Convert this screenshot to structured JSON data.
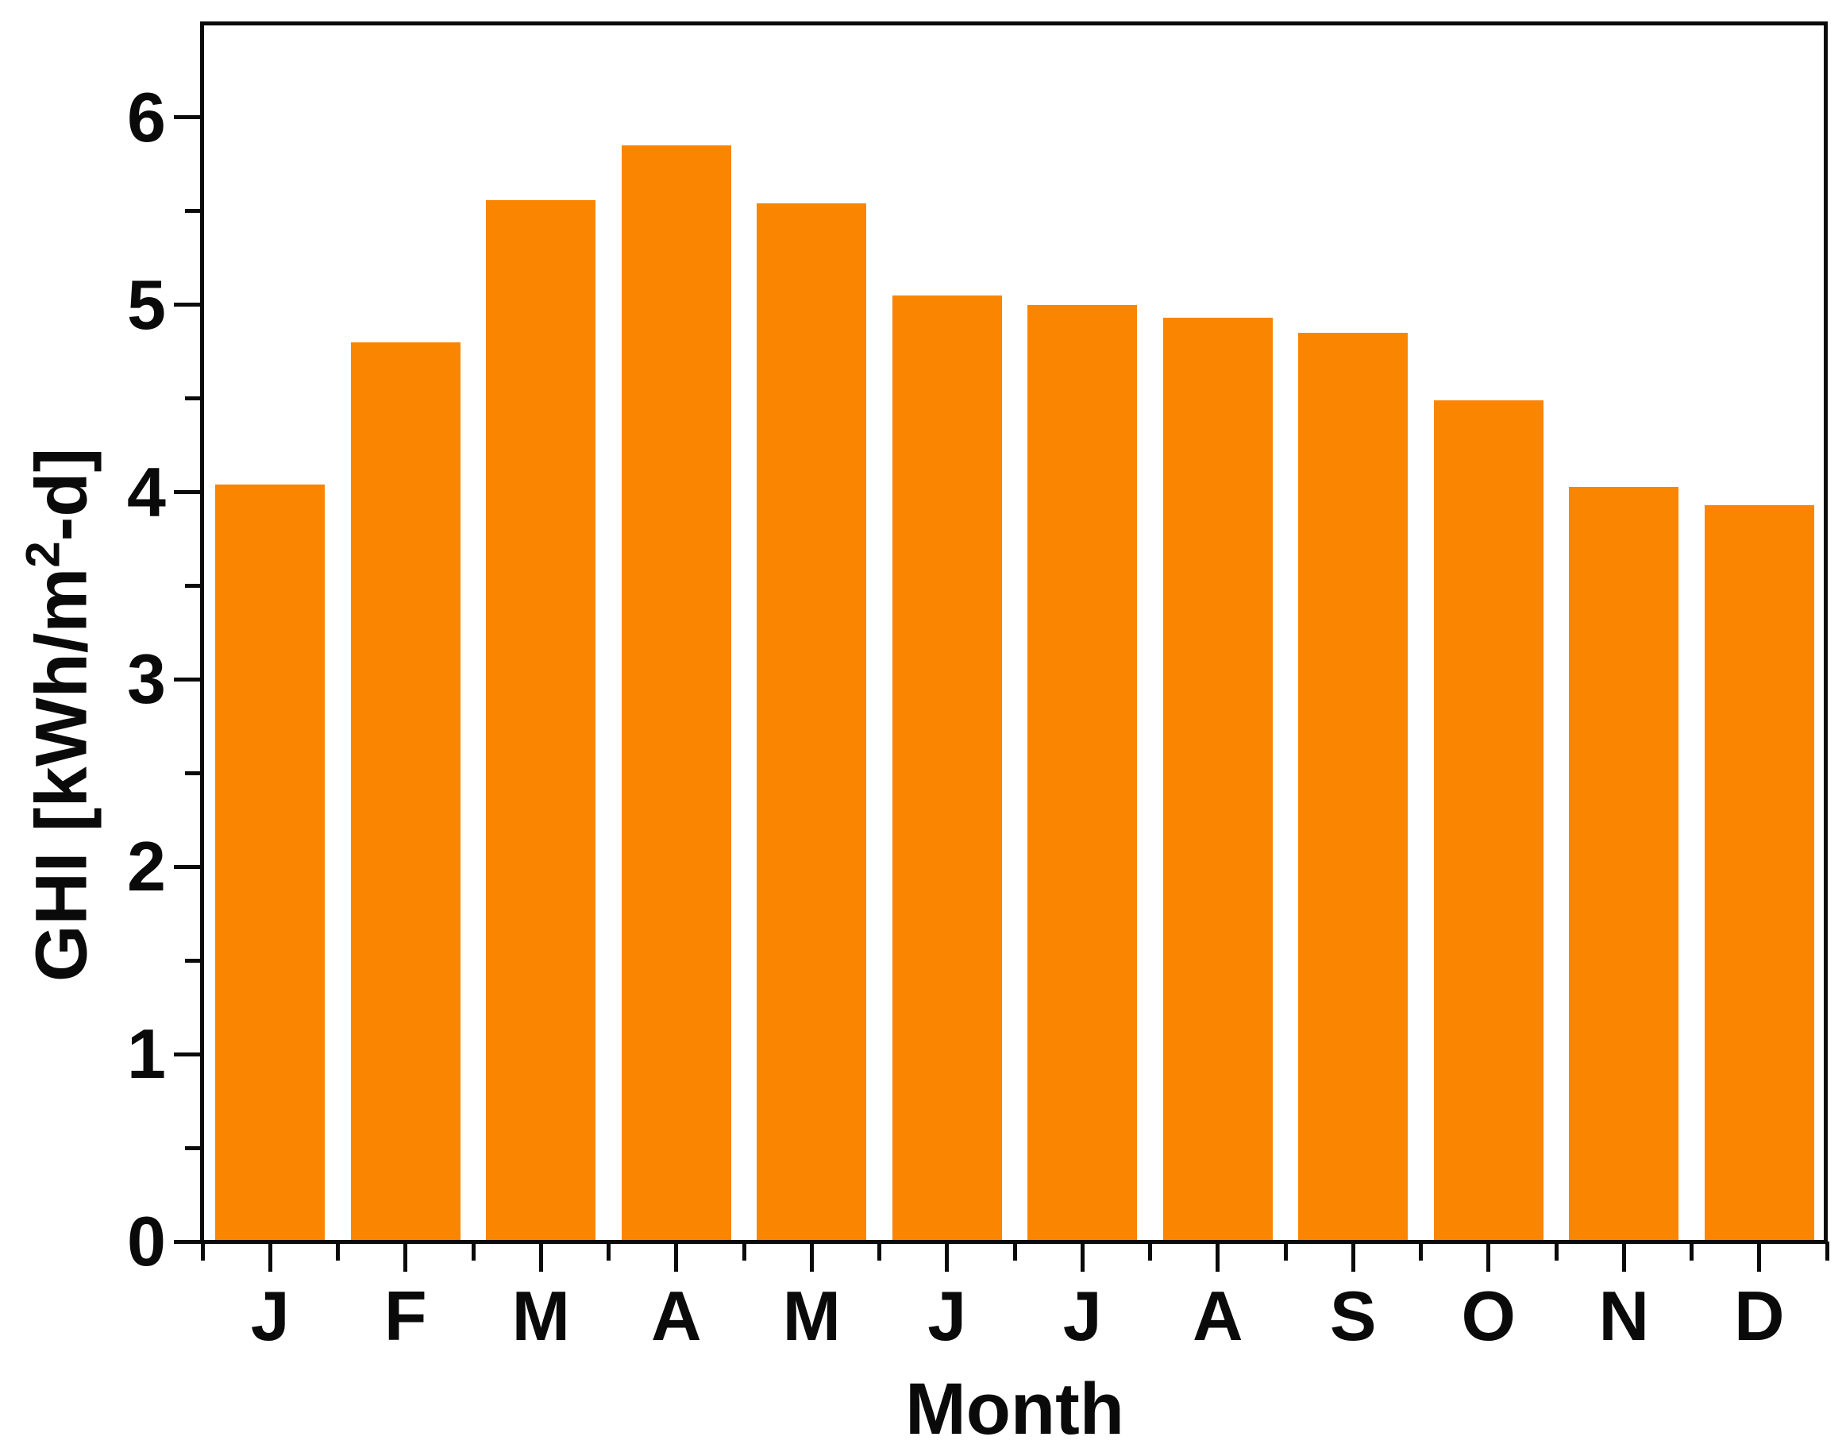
{
  "chart_data": {
    "type": "bar",
    "categories": [
      "J",
      "F",
      "M",
      "A",
      "M",
      "J",
      "J",
      "A",
      "S",
      "O",
      "N",
      "D"
    ],
    "values": [
      4.04,
      4.8,
      5.56,
      5.85,
      5.54,
      5.05,
      5.0,
      4.93,
      4.85,
      4.49,
      4.03,
      3.93
    ],
    "title": "",
    "xlabel": "Month",
    "ylabel": "GHI [kWh/m2-d]",
    "ylabel_parts": {
      "prefix": "GHI [kWh/m",
      "sup": "2",
      "suffix": "-d]"
    },
    "ylim": [
      0,
      6.5
    ],
    "y_major_ticks": [
      0,
      1,
      2,
      3,
      4,
      5,
      6
    ],
    "y_minor_step": 0.5,
    "grid": false,
    "legend": null,
    "bar_color": "#FA8500"
  },
  "colors": {
    "bar": "#FA8500",
    "axis": "#0a0a0a",
    "background": "#ffffff"
  }
}
